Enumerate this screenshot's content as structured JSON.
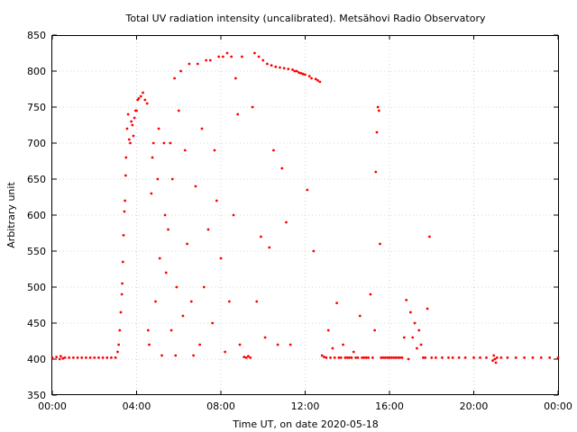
{
  "chart_data": {
    "type": "scatter",
    "title": "Total UV radiation intensity (uncalibrated). Metsähovi Radio Observatory",
    "xlabel": "Time UT, on date 2020-05-18",
    "ylabel": "Arbitrary unit",
    "xlim": [
      0,
      24
    ],
    "ylim": [
      350,
      850
    ],
    "x_ticks": [
      {
        "value": 0,
        "label": "00:00"
      },
      {
        "value": 4,
        "label": "04:00"
      },
      {
        "value": 8,
        "label": "08:00"
      },
      {
        "value": 12,
        "label": "12:00"
      },
      {
        "value": 16,
        "label": "16:00"
      },
      {
        "value": 20,
        "label": "20:00"
      },
      {
        "value": 24,
        "label": "00:00"
      }
    ],
    "y_ticks": [
      350,
      400,
      450,
      500,
      550,
      600,
      650,
      700,
      750,
      800,
      850
    ],
    "grid": true,
    "marker_color": "#ff0000",
    "series": [
      {
        "points": [
          [
            0.0,
            402
          ],
          [
            0.2,
            403
          ],
          [
            0.35,
            400
          ],
          [
            0.4,
            404
          ],
          [
            0.5,
            401
          ],
          [
            0.6,
            402
          ],
          [
            0.8,
            402
          ],
          [
            1.0,
            402
          ],
          [
            1.2,
            402
          ],
          [
            1.4,
            402
          ],
          [
            1.6,
            402
          ],
          [
            1.8,
            402
          ],
          [
            2.0,
            402
          ],
          [
            2.2,
            402
          ],
          [
            2.4,
            402
          ],
          [
            2.6,
            402
          ],
          [
            2.8,
            402
          ],
          [
            3.0,
            402
          ],
          [
            3.1,
            410
          ],
          [
            3.15,
            420
          ],
          [
            3.2,
            440
          ],
          [
            3.25,
            465
          ],
          [
            3.3,
            490
          ],
          [
            3.32,
            505
          ],
          [
            3.35,
            535
          ],
          [
            3.38,
            572
          ],
          [
            3.42,
            605
          ],
          [
            3.45,
            620
          ],
          [
            3.48,
            655
          ],
          [
            3.5,
            680
          ],
          [
            3.55,
            720
          ],
          [
            3.6,
            740
          ],
          [
            3.65,
            705
          ],
          [
            3.7,
            700
          ],
          [
            3.75,
            730
          ],
          [
            3.8,
            725
          ],
          [
            3.85,
            710
          ],
          [
            3.9,
            735
          ],
          [
            3.95,
            745
          ],
          [
            4.0,
            745
          ],
          [
            4.05,
            760
          ],
          [
            4.1,
            762
          ],
          [
            4.2,
            765
          ],
          [
            4.3,
            770
          ],
          [
            4.4,
            760
          ],
          [
            4.5,
            755
          ],
          [
            4.55,
            440
          ],
          [
            4.6,
            420
          ],
          [
            4.7,
            630
          ],
          [
            4.75,
            680
          ],
          [
            4.8,
            700
          ],
          [
            4.9,
            480
          ],
          [
            5.0,
            650
          ],
          [
            5.05,
            720
          ],
          [
            5.1,
            540
          ],
          [
            5.2,
            405
          ],
          [
            5.3,
            700
          ],
          [
            5.35,
            600
          ],
          [
            5.4,
            520
          ],
          [
            5.5,
            580
          ],
          [
            5.6,
            700
          ],
          [
            5.65,
            440
          ],
          [
            5.7,
            650
          ],
          [
            5.8,
            790
          ],
          [
            5.85,
            405
          ],
          [
            5.9,
            500
          ],
          [
            6.0,
            745
          ],
          [
            6.1,
            800
          ],
          [
            6.2,
            460
          ],
          [
            6.3,
            690
          ],
          [
            6.4,
            560
          ],
          [
            6.5,
            810
          ],
          [
            6.6,
            480
          ],
          [
            6.7,
            405
          ],
          [
            6.8,
            640
          ],
          [
            6.9,
            810
          ],
          [
            7.0,
            420
          ],
          [
            7.1,
            720
          ],
          [
            7.2,
            500
          ],
          [
            7.3,
            815
          ],
          [
            7.4,
            580
          ],
          [
            7.5,
            815
          ],
          [
            7.6,
            450
          ],
          [
            7.7,
            690
          ],
          [
            7.8,
            620
          ],
          [
            7.9,
            820
          ],
          [
            8.0,
            540
          ],
          [
            8.1,
            820
          ],
          [
            8.2,
            410
          ],
          [
            8.3,
            825
          ],
          [
            8.4,
            480
          ],
          [
            8.5,
            820
          ],
          [
            8.6,
            600
          ],
          [
            8.7,
            790
          ],
          [
            8.8,
            740
          ],
          [
            8.9,
            420
          ],
          [
            9.0,
            820
          ],
          [
            9.1,
            403
          ],
          [
            9.2,
            402
          ],
          [
            9.3,
            404
          ],
          [
            9.4,
            402
          ],
          [
            9.5,
            750
          ],
          [
            9.6,
            825
          ],
          [
            9.7,
            480
          ],
          [
            9.8,
            820
          ],
          [
            9.9,
            570
          ],
          [
            10.0,
            815
          ],
          [
            10.1,
            430
          ],
          [
            10.2,
            810
          ],
          [
            10.3,
            555
          ],
          [
            10.4,
            808
          ],
          [
            10.5,
            690
          ],
          [
            10.6,
            806
          ],
          [
            10.7,
            420
          ],
          [
            10.8,
            805
          ],
          [
            10.9,
            665
          ],
          [
            11.0,
            804
          ],
          [
            11.1,
            590
          ],
          [
            11.2,
            803
          ],
          [
            11.3,
            420
          ],
          [
            11.4,
            802
          ],
          [
            11.5,
            800
          ],
          [
            11.6,
            800
          ],
          [
            11.7,
            798
          ],
          [
            11.8,
            797
          ],
          [
            11.9,
            796
          ],
          [
            12.0,
            795
          ],
          [
            12.1,
            635
          ],
          [
            12.2,
            793
          ],
          [
            12.3,
            790
          ],
          [
            12.4,
            550
          ],
          [
            12.5,
            789
          ],
          [
            12.6,
            787
          ],
          [
            12.7,
            785
          ],
          [
            12.8,
            405
          ],
          [
            12.9,
            403
          ],
          [
            13.0,
            402
          ],
          [
            13.1,
            440
          ],
          [
            13.2,
            402
          ],
          [
            13.3,
            415
          ],
          [
            13.4,
            402
          ],
          [
            13.5,
            478
          ],
          [
            13.6,
            402
          ],
          [
            13.7,
            402
          ],
          [
            13.8,
            420
          ],
          [
            13.9,
            402
          ],
          [
            14.0,
            402
          ],
          [
            14.1,
            402
          ],
          [
            14.2,
            402
          ],
          [
            14.3,
            410
          ],
          [
            14.4,
            402
          ],
          [
            14.5,
            402
          ],
          [
            14.6,
            460
          ],
          [
            14.7,
            402
          ],
          [
            14.8,
            402
          ],
          [
            14.9,
            402
          ],
          [
            15.0,
            402
          ],
          [
            15.1,
            490
          ],
          [
            15.2,
            402
          ],
          [
            15.3,
            440
          ],
          [
            15.35,
            660
          ],
          [
            15.4,
            715
          ],
          [
            15.45,
            750
          ],
          [
            15.5,
            745
          ],
          [
            15.55,
            560
          ],
          [
            15.6,
            402
          ],
          [
            15.7,
            402
          ],
          [
            15.8,
            402
          ],
          [
            15.9,
            402
          ],
          [
            16.0,
            402
          ],
          [
            16.1,
            402
          ],
          [
            16.2,
            402
          ],
          [
            16.3,
            402
          ],
          [
            16.4,
            402
          ],
          [
            16.5,
            402
          ],
          [
            16.6,
            402
          ],
          [
            16.7,
            430
          ],
          [
            16.8,
            482
          ],
          [
            16.9,
            400
          ],
          [
            17.0,
            465
          ],
          [
            17.1,
            430
          ],
          [
            17.2,
            450
          ],
          [
            17.3,
            415
          ],
          [
            17.4,
            440
          ],
          [
            17.5,
            420
          ],
          [
            17.6,
            402
          ],
          [
            17.7,
            402
          ],
          [
            17.8,
            470
          ],
          [
            17.9,
            570
          ],
          [
            18.0,
            402
          ],
          [
            18.2,
            402
          ],
          [
            18.5,
            402
          ],
          [
            18.8,
            402
          ],
          [
            19.0,
            402
          ],
          [
            19.3,
            402
          ],
          [
            19.6,
            402
          ],
          [
            20.0,
            402
          ],
          [
            20.3,
            402
          ],
          [
            20.6,
            402
          ],
          [
            20.9,
            398
          ],
          [
            20.95,
            405
          ],
          [
            21.0,
            400
          ],
          [
            21.05,
            395
          ],
          [
            21.1,
            402
          ],
          [
            21.3,
            402
          ],
          [
            21.6,
            402
          ],
          [
            22.0,
            402
          ],
          [
            22.4,
            402
          ],
          [
            22.8,
            402
          ],
          [
            23.2,
            402
          ],
          [
            23.6,
            402
          ],
          [
            24.0,
            402
          ]
        ]
      }
    ]
  }
}
